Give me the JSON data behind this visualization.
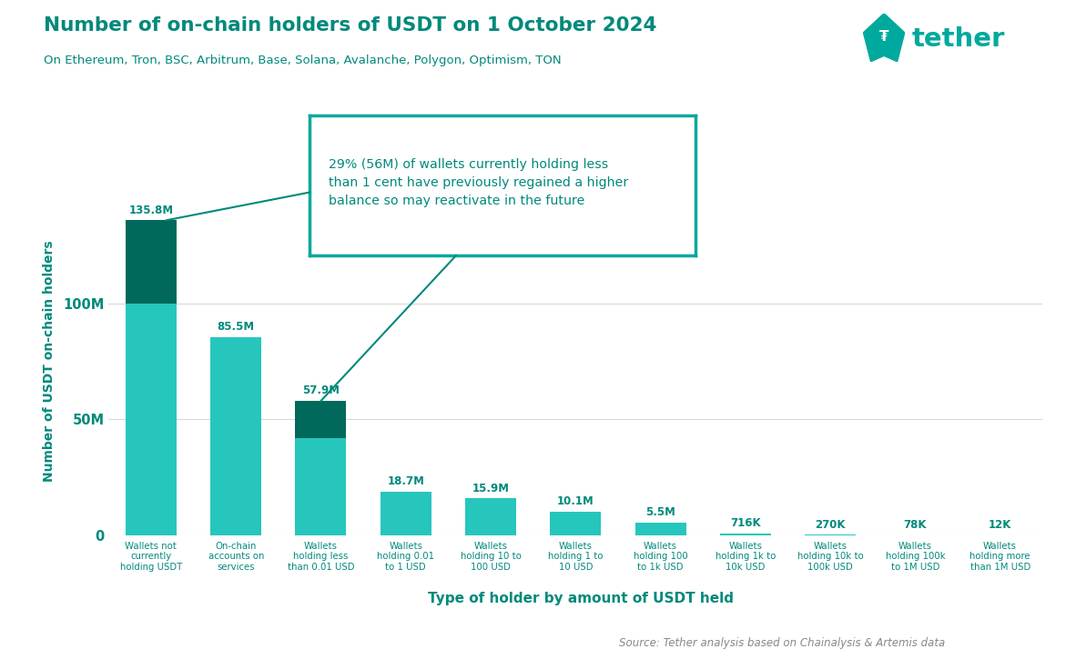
{
  "title": "Number of on-chain holders of USDT on 1 October 2024",
  "subtitle": "On Ethereum, Tron, BSC, Arbitrum, Base, Solana, Avalanche, Polygon, Optimism, TON",
  "ylabel": "Number of USDT on-chain holders",
  "xlabel": "Type of holder by amount of USDT held",
  "source": "Source: Tether analysis based on Chainalysis & Artemis data",
  "bg_color": "#ffffff",
  "tether_color": "#00a99d",
  "title_color": "#00897b",
  "label_color": "#00897b",
  "dark_color": "#00695c",
  "categories": [
    "Wallets not\ncurrently\nholding USDT",
    "On-chain\naccounts on\nservices",
    "Wallets\nholding less\nthan 0.01 USD",
    "Wallets\nholding 0.01\nto 1 USD",
    "Wallets\nholding 10 to\n100 USD",
    "Wallets\nholding 1 to\n10 USD",
    "Wallets\nholding 100\nto 1k USD",
    "Wallets\nholding 1k to\n10k USD",
    "Wallets\nholding 10k to\n100k USD",
    "Wallets\nholding 100k\nto 1M USD",
    "Wallets\nholding more\nthan 1M USD"
  ],
  "values": [
    135.8,
    85.5,
    57.9,
    18.7,
    15.9,
    10.1,
    5.5,
    0.716,
    0.27,
    0.078,
    0.012
  ],
  "value_labels": [
    "135.8M",
    "85.5M",
    "57.9M",
    "18.7M",
    "15.9M",
    "10.1M",
    "5.5M",
    "716K",
    "270K",
    "78K",
    "12K"
  ],
  "bar_color_light": "#26c6bc",
  "bar_color_dark": "#00695c",
  "dark_top_values": [
    35.8,
    0,
    15.9,
    0,
    0,
    0,
    0,
    0,
    0,
    0,
    0
  ],
  "annotation_text": "29% (56M) of wallets currently holding less\nthan 1 cent have previously regained a higher\nbalance so may reactivate in the future",
  "ylim_max": 150,
  "yticks": [
    0,
    50,
    100
  ],
  "ytick_labels": [
    "0",
    "50M",
    "100M"
  ]
}
